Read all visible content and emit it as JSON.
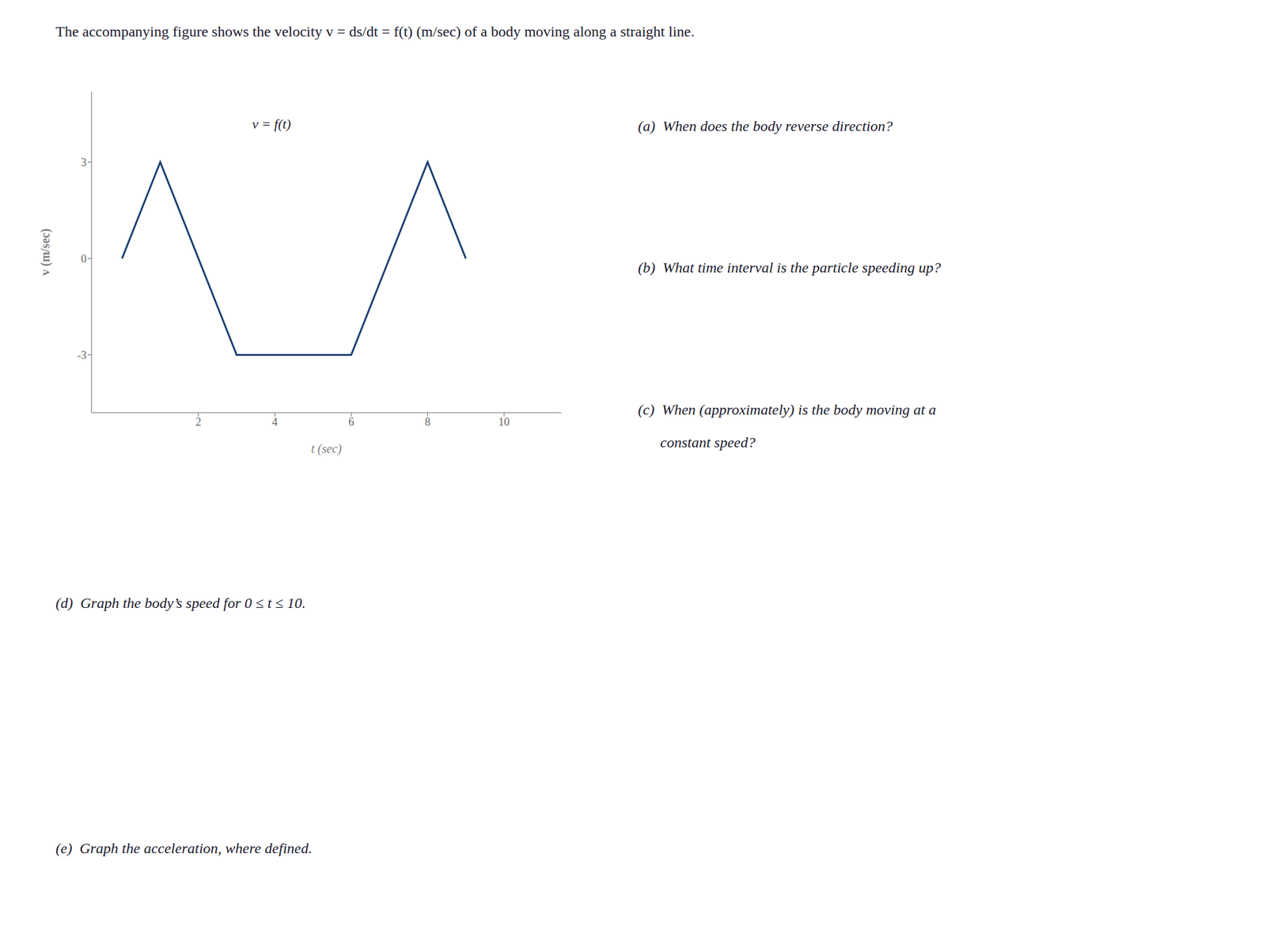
{
  "chart_data": {
    "type": "line",
    "title": "The accompanying figure shows the velocity v = ds/dt = f(t)  (m/sec) of a body moving along a straight line.",
    "x": [
      0,
      1,
      2,
      3,
      6,
      8,
      9
    ],
    "series": [
      {
        "name": "v = f(t)",
        "color": "#1c3f72",
        "values": [
          0,
          3,
          0,
          -3,
          -3,
          3,
          0
        ]
      }
    ],
    "xlabel": "t (sec)",
    "ylabel": "v (m/sec)",
    "xlim": [
      -0.8,
      11.5
    ],
    "ylim": [
      -4.8,
      5.2
    ],
    "xticks": [
      2,
      4,
      6,
      8,
      10
    ],
    "yticks": [
      -3,
      0,
      3
    ],
    "grid": false,
    "annotations": [
      "(a)  When does the body reverse direction?",
      "(b)  What time interval is the particle speeding up?",
      "(c)  When (approximately) is the body moving at a",
      "      constant speed?",
      "(d)  Graph the body’s speed for 0 ≤ t ≤ 10.",
      "(e)  Graph the acceleration, where defined."
    ]
  }
}
